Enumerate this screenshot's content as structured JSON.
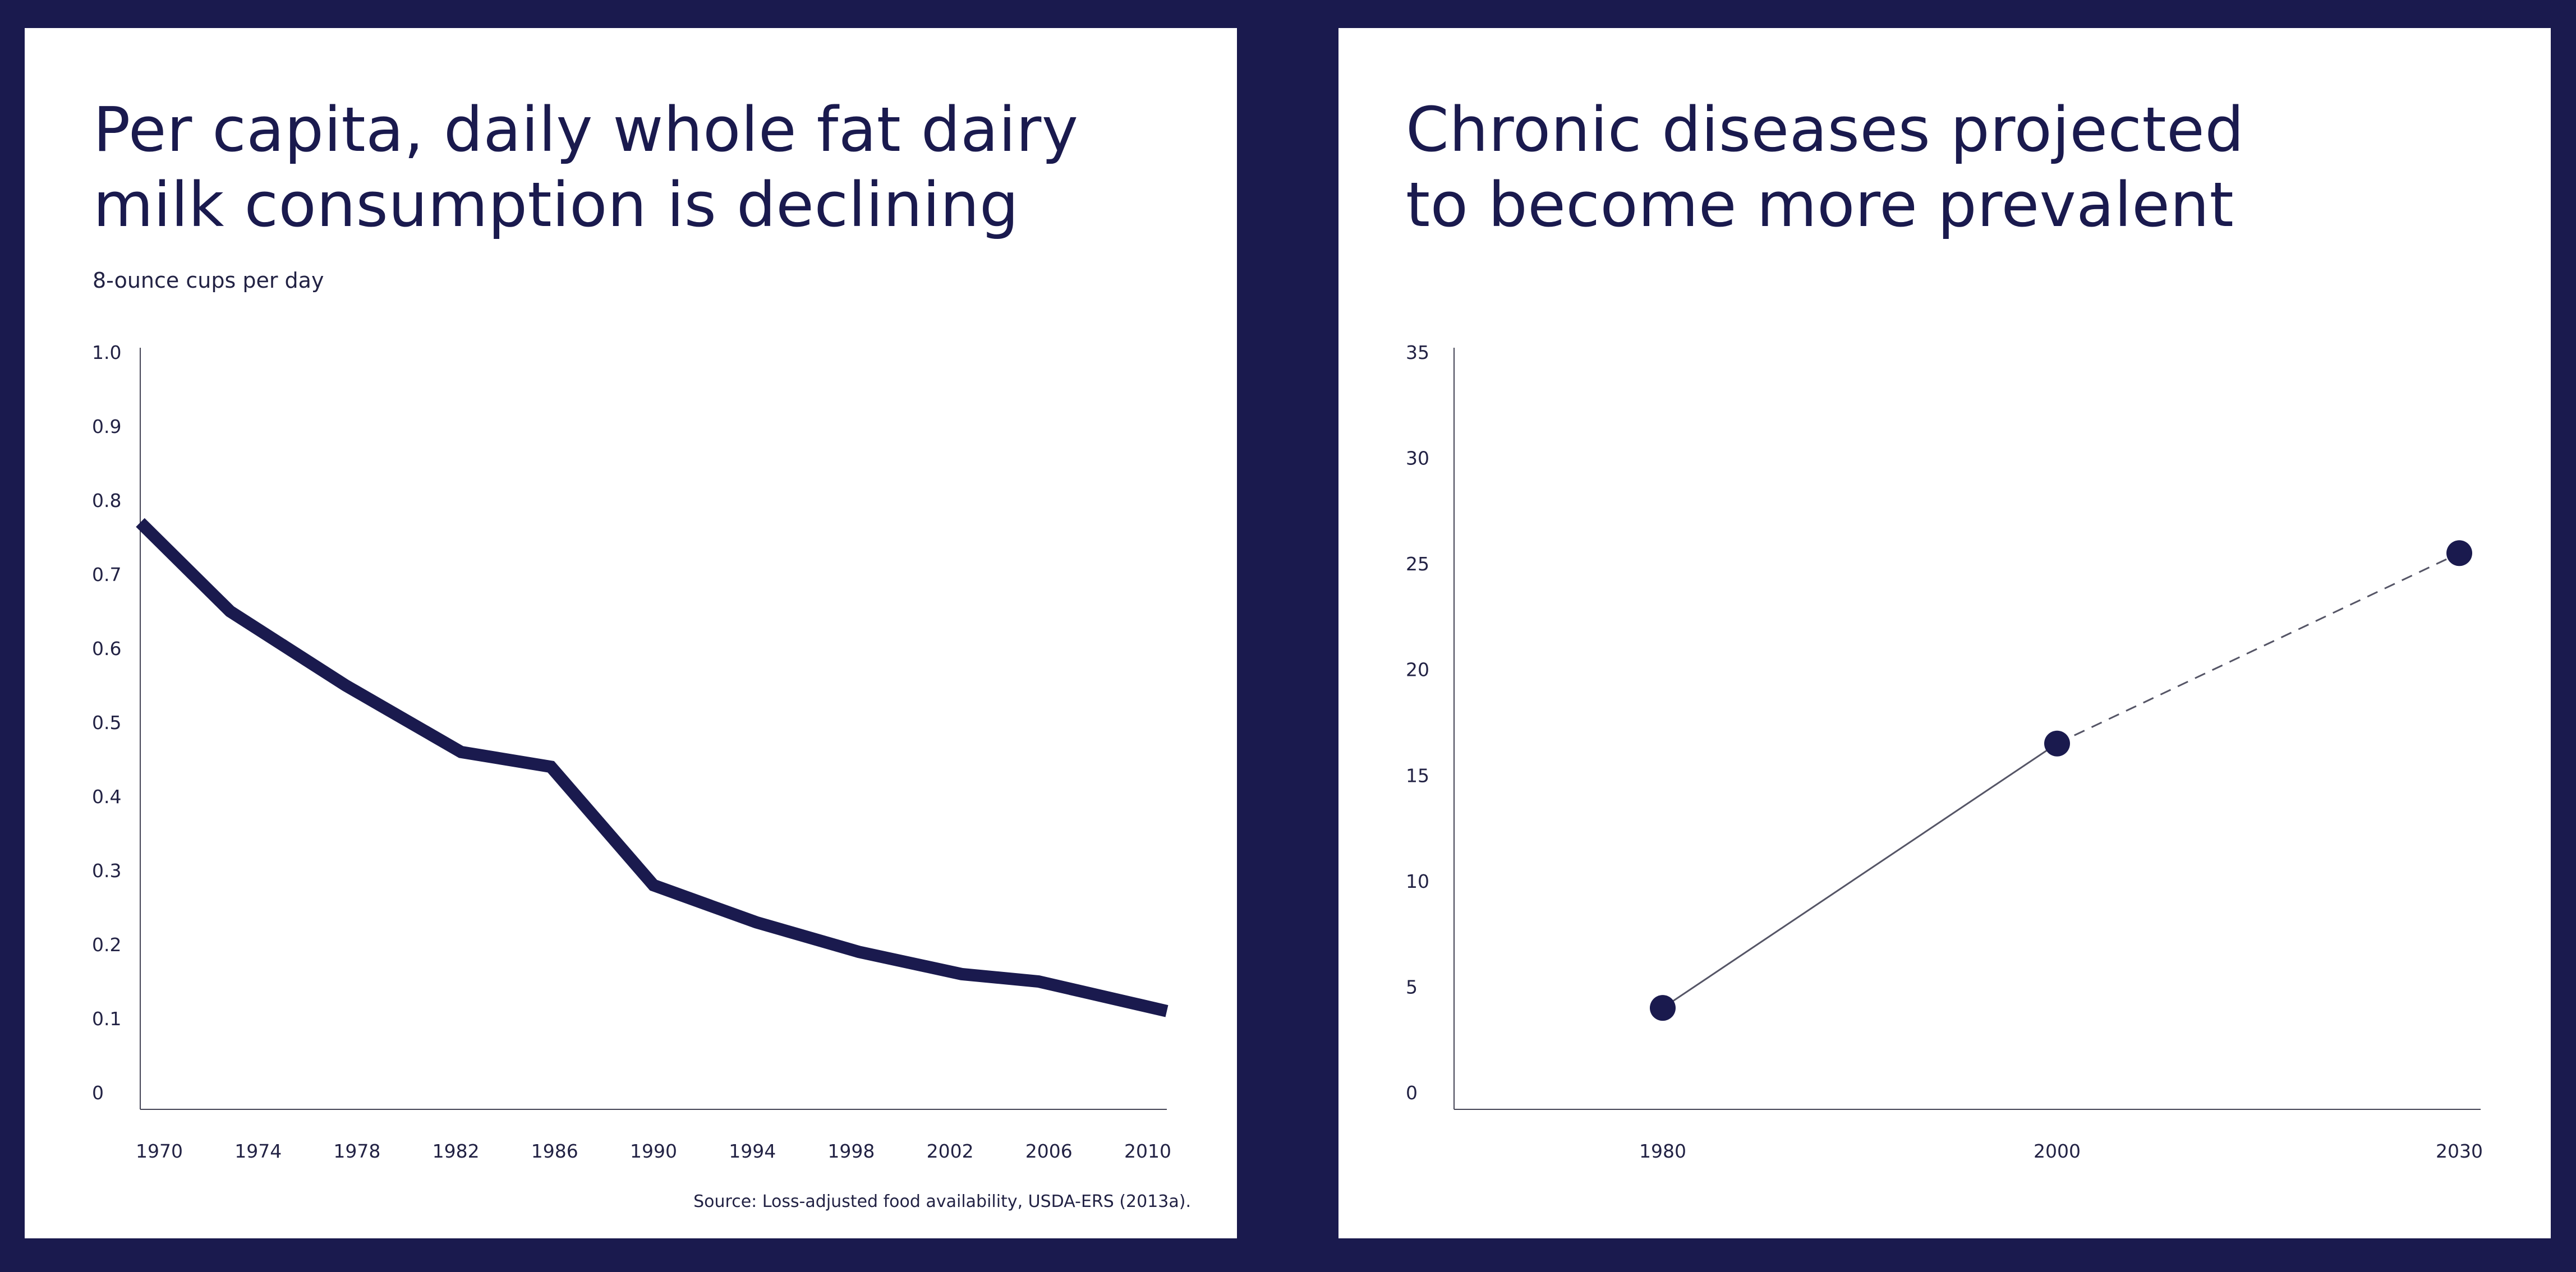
{
  "colors": {
    "background": "#1a1a4e",
    "panel": "#ffffff",
    "ink": "#1a1a4e",
    "thin_line": "#555566"
  },
  "chart_data": [
    {
      "type": "line",
      "title_lines": [
        "Per capita, daily whole fat dairy",
        "milk consumption is declining"
      ],
      "ylabel": "8-ounce cups per day",
      "source": "Source: Loss-adjusted food availability, USDA-ERS (2013a).",
      "ylim": [
        0,
        1.0
      ],
      "xlim": [
        1970,
        2010
      ],
      "y_ticks": [
        0,
        0.1,
        0.2,
        0.3,
        0.4,
        0.5,
        0.6,
        0.7,
        0.8,
        0.9,
        1.0
      ],
      "y_tick_labels": [
        "0",
        "0.1",
        "0.2",
        "0.3",
        "0.4",
        "0.5",
        "0.6",
        "0.7",
        "0.8",
        "0.9",
        "1.0"
      ],
      "x_ticks": [
        1970,
        1974,
        1978,
        1982,
        1986,
        1990,
        1994,
        1998,
        2002,
        2006,
        2010
      ],
      "x_tick_labels": [
        "1970",
        "1974",
        "1978",
        "1982",
        "1986",
        "1990",
        "1994",
        "1998",
        "2002",
        "2006",
        "2010"
      ],
      "grid": false,
      "series": [
        {
          "x": [
            1970,
            1973.5,
            1978,
            1982.5,
            1986,
            1990,
            1994,
            1998,
            2002,
            2005,
            2010
          ],
          "values": [
            0.77,
            0.65,
            0.55,
            0.46,
            0.44,
            0.28,
            0.23,
            0.19,
            0.16,
            0.15,
            0.11
          ]
        }
      ]
    },
    {
      "type": "line",
      "title_lines": [
        "Chronic diseases projected",
        "to become more prevalent"
      ],
      "ylim": [
        0,
        35
      ],
      "x_categories": [
        "1980",
        "2000",
        "2030"
      ],
      "x_positions": [
        1980,
        2000,
        2030
      ],
      "xlim": [
        1970,
        2030
      ],
      "y_ticks": [
        0,
        5,
        10,
        15,
        20,
        25,
        30,
        35
      ],
      "y_tick_labels": [
        "0",
        "5",
        "10",
        "15",
        "20",
        "25",
        "30",
        "35"
      ],
      "grid": false,
      "series": [
        {
          "x": [
            1980,
            2000,
            2030
          ],
          "values": [
            4,
            16.5,
            25.5
          ],
          "segments": [
            "solid",
            "dashed"
          ],
          "markers": true
        }
      ]
    }
  ]
}
